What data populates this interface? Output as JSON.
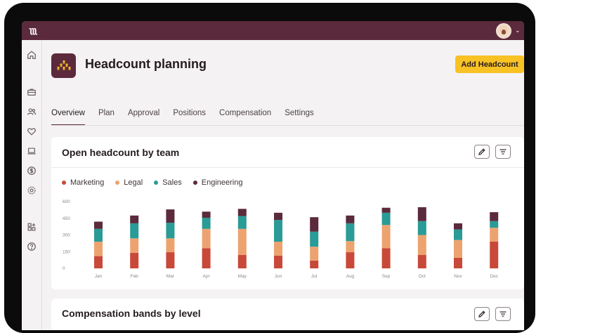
{
  "header": {
    "logo_text": "ʅʅʅ",
    "avatar_icon": "user-avatar-icon",
    "caret_icon": "chevron-down-icon"
  },
  "sidebar": {
    "icons": [
      "home-icon",
      "briefcase-icon",
      "users-icon",
      "heart-icon",
      "laptop-icon",
      "dollar-icon",
      "settings-icon",
      "apps-icon",
      "help-icon"
    ]
  },
  "page": {
    "title": "Headcount planning",
    "add_button": "Add Headcount",
    "tabs": [
      "Overview",
      "Plan",
      "Approval",
      "Positions",
      "Compensation",
      "Settings"
    ],
    "active_tab": "Overview"
  },
  "cards": {
    "open_headcount": {
      "title": "Open headcount by team",
      "edit_icon": "pencil-icon",
      "filter_icon": "filter-icon"
    },
    "compensation": {
      "title": "Compensation bands by level",
      "edit_icon": "pencil-icon",
      "filter_icon": "filter-icon"
    }
  },
  "colors": {
    "brand": "#5b2a3c",
    "accent": "#f8c124",
    "marketing": "#c8493a",
    "legal": "#eda36f",
    "sales": "#2a9b96",
    "engineering": "#5b2a3c"
  },
  "chart_data": {
    "type": "bar",
    "stacked": true,
    "categories": [
      "Jan",
      "Feb",
      "Mar",
      "Apr",
      "May",
      "Jun",
      "Jul",
      "Aug",
      "Sep",
      "Oct",
      "Nov",
      "Dec"
    ],
    "series": [
      {
        "name": "Marketing",
        "values": [
          110,
          140,
          145,
          180,
          120,
          115,
          70,
          145,
          180,
          120,
          95,
          240
        ]
      },
      {
        "name": "Legal",
        "values": [
          130,
          130,
          125,
          175,
          235,
          125,
          125,
          100,
          210,
          180,
          160,
          125
        ]
      },
      {
        "name": "Sales",
        "values": [
          115,
          135,
          140,
          100,
          115,
          195,
          135,
          160,
          110,
          125,
          95,
          60
        ]
      },
      {
        "name": "Engineering",
        "values": [
          65,
          70,
          120,
          55,
          65,
          65,
          130,
          70,
          45,
          125,
          55,
          80
        ]
      }
    ],
    "yticks": [
      0,
      150,
      300,
      450,
      600
    ],
    "ylim": [
      0,
      600
    ],
    "legend": "top-left",
    "grid": false
  }
}
